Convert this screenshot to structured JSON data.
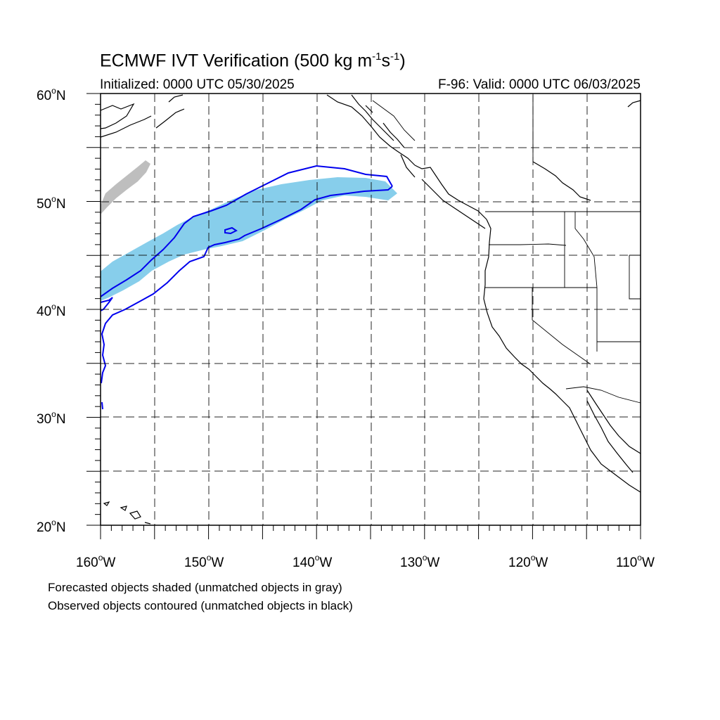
{
  "figure": {
    "title_main": "ECMWF IVT Verification (500 kg m",
    "title_sup1": "-1",
    "title_mid": "s",
    "title_sup2": "-1",
    "title_end": ")",
    "initialized": "Initialized: 0000 UTC 05/30/2025",
    "valid": "F-96: Valid: 0000 UTC 06/03/2025",
    "note_forecast": "Forecasted objects shaded (unmatched objects in gray)",
    "note_observed": "Observed objects contoured (unmatched objects in black)"
  },
  "map": {
    "lat_labels": [
      "60",
      "50",
      "40",
      "30",
      "20"
    ],
    "lon_labels": [
      "160",
      "150",
      "140",
      "130",
      "120",
      "110"
    ],
    "degree_symbol": "o",
    "lat_suffix": "N",
    "lon_suffix": "W",
    "extent": {
      "lon": [
        -160,
        -110
      ],
      "lat": [
        20,
        60
      ]
    },
    "colors": {
      "forecast_matched": "#87CEEB",
      "forecast_unmatched": "#BEBEBE",
      "observed_contour": "#0000EE",
      "coastline": "#000000",
      "grid": "#000000"
    }
  }
}
